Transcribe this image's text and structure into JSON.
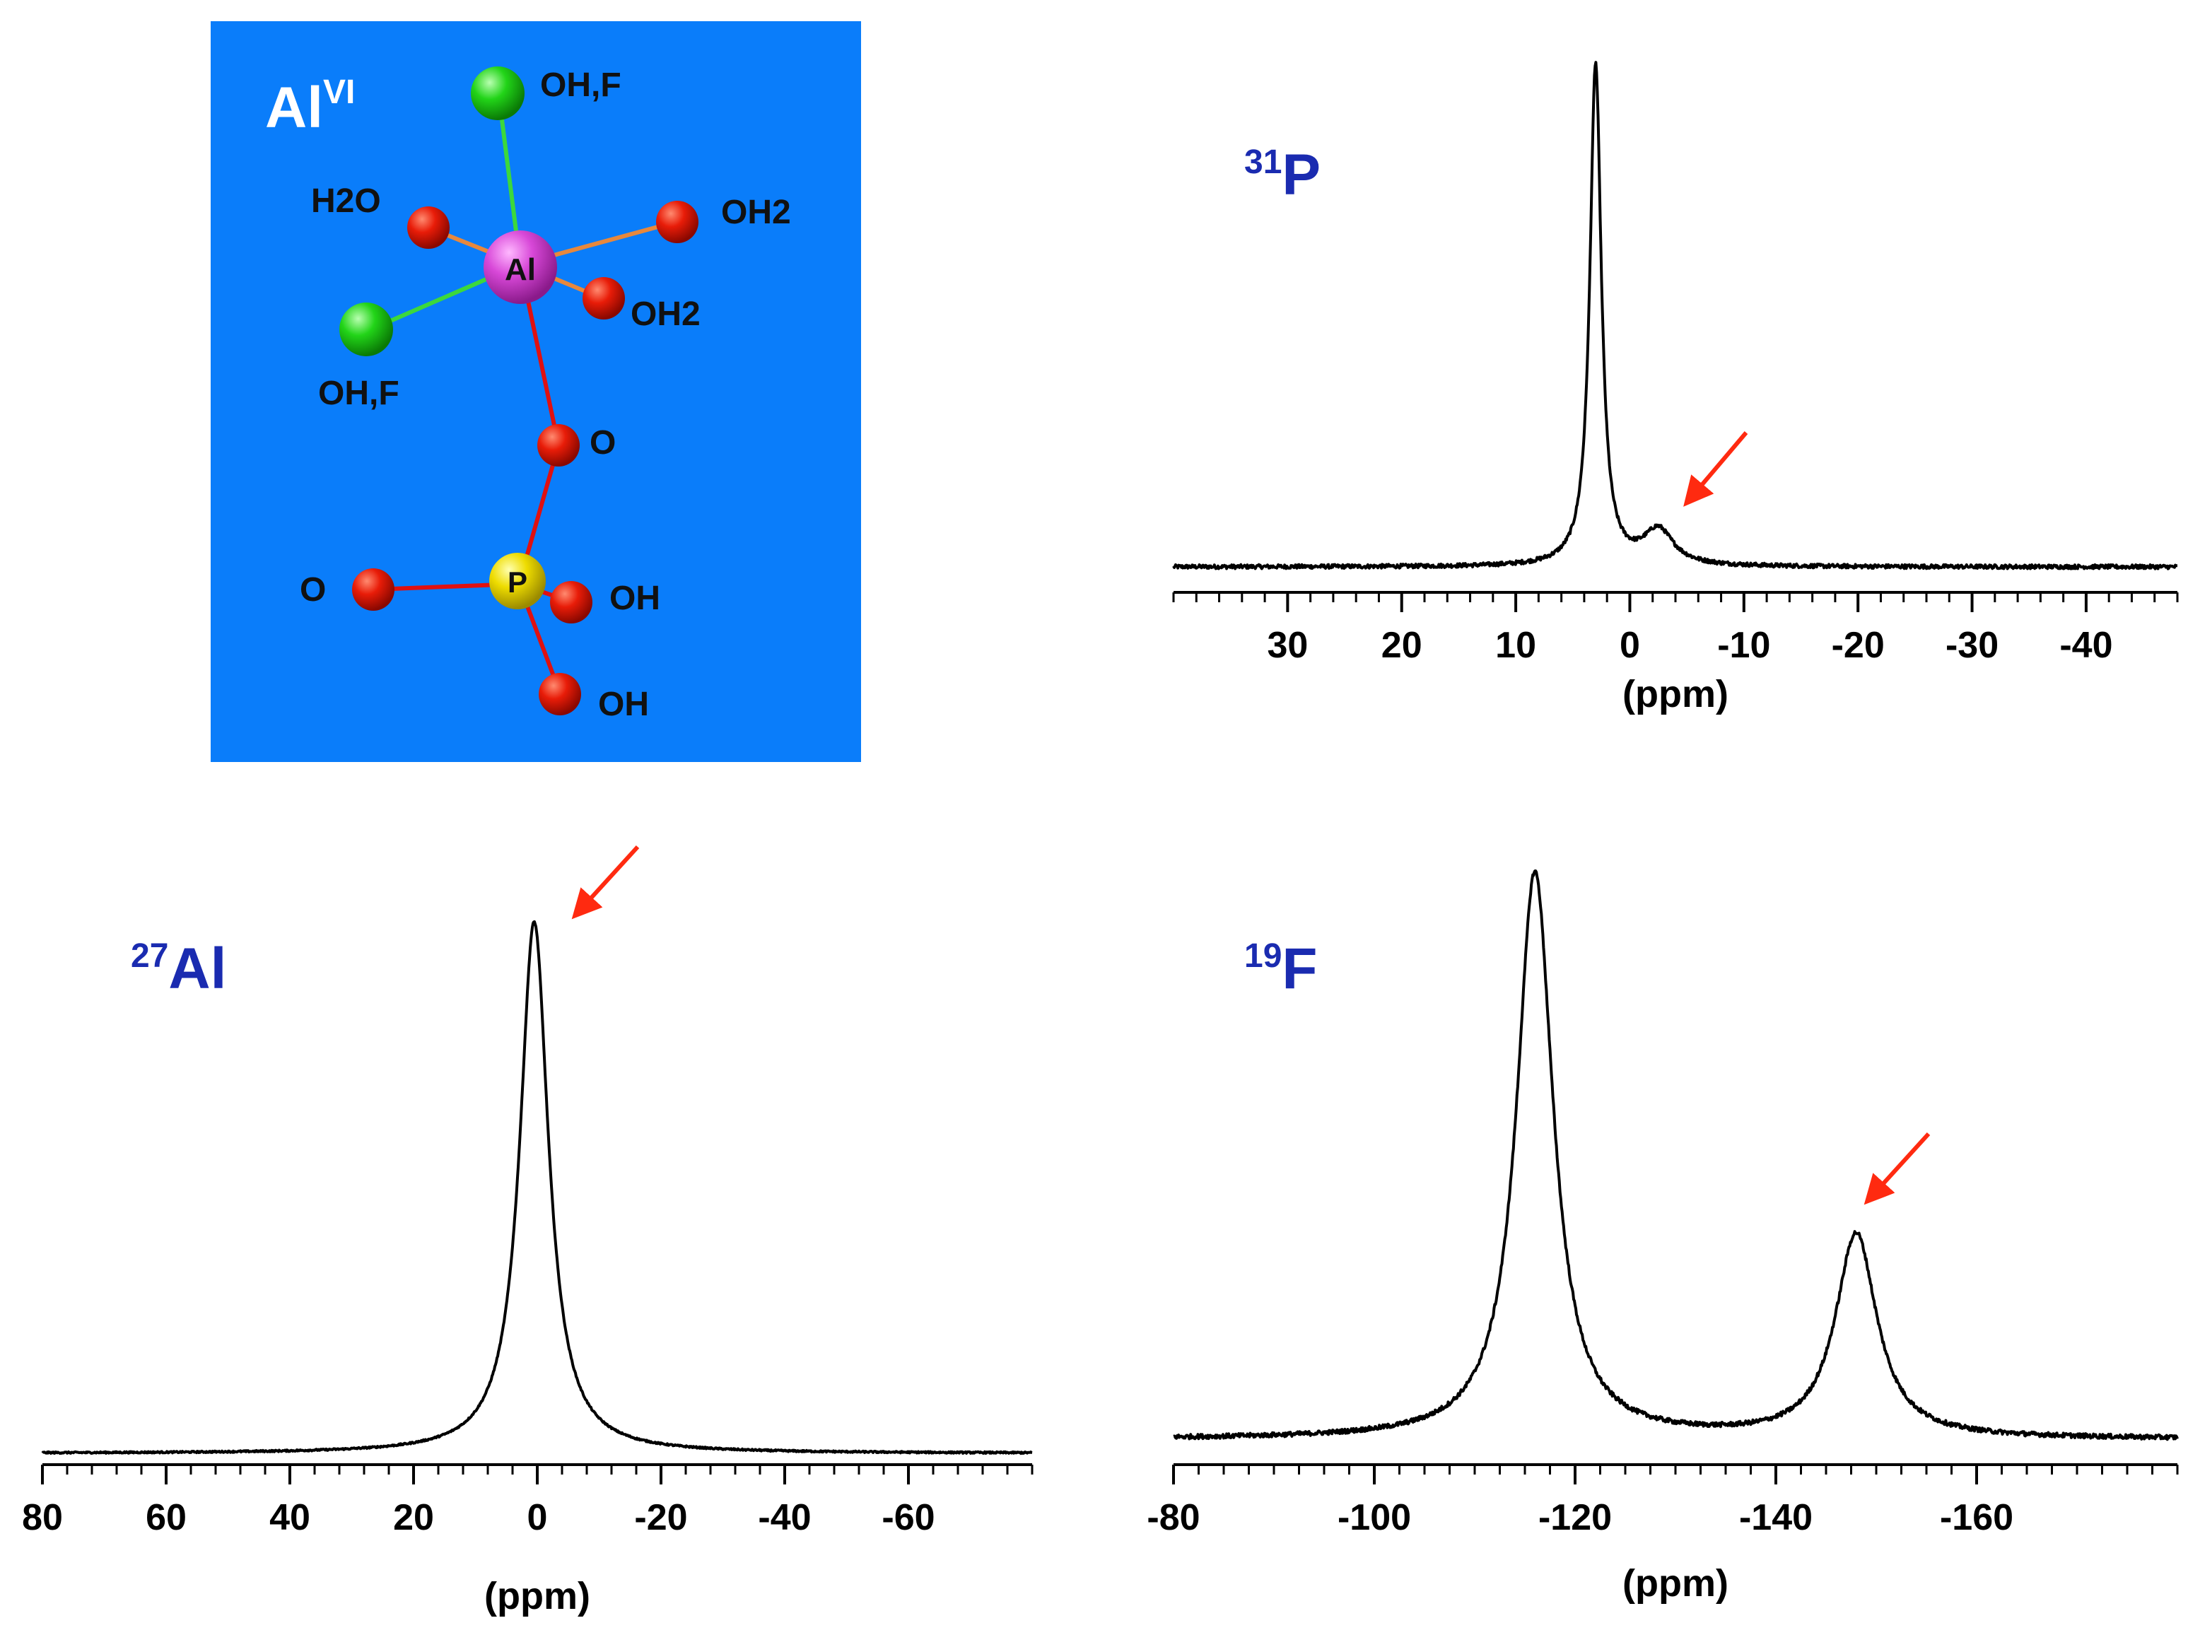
{
  "colors": {
    "panel_bg": "#0a7dfa",
    "nucleus_label": "#1a2bb0",
    "arrow": "#ff2a10",
    "spectrum": "#000000",
    "oxygen": "#e01808",
    "halogen": "#22d418",
    "aluminum": "#d848d8",
    "phosphorus": "#e6d400",
    "bond_green": "#3cd83c",
    "bond_orange": "#e8883c",
    "bond_red": "#e01010"
  },
  "molecule": {
    "title_main": "Al",
    "title_sup": "VI",
    "atoms": {
      "al": "Al",
      "p": "P"
    },
    "labels": {
      "oh_f_top": "OH,F",
      "h2o": "H2O",
      "oh2_right": "OH2",
      "oh2_lower": "OH2",
      "oh_f_left": "OH,F",
      "o_bridge": "O",
      "o_left": "O",
      "oh_right": "OH",
      "oh_bottom": "OH"
    }
  },
  "chart_data": [
    {
      "id": "p31",
      "type": "line",
      "title_sup": "31",
      "title_main": "P",
      "xlabel": "(ppm)",
      "xlim": [
        40,
        -48
      ],
      "ticks": [
        30,
        20,
        10,
        0,
        -10,
        -20,
        -30,
        -40
      ],
      "tick_labels": [
        "30",
        "20",
        "10",
        "0",
        "-10",
        "-20",
        "-30",
        "-40"
      ],
      "minor_step": 2,
      "series": [
        {
          "name": "31P spectrum",
          "baseline": 0,
          "peaks": [
            {
              "center": 3.0,
              "height": 100,
              "width": 0.6
            },
            {
              "center": -2.5,
              "height": 7,
              "width": 1.6
            }
          ],
          "noise": 0.8
        }
      ],
      "annotations": [
        {
          "type": "arrow",
          "points_to_ppm": -5,
          "label": ""
        }
      ]
    },
    {
      "id": "al27",
      "type": "line",
      "title_sup": "27",
      "title_main": "Al",
      "xlabel": "(ppm)",
      "xlim": [
        80,
        -80
      ],
      "ticks": [
        80,
        60,
        40,
        20,
        0,
        -20,
        -40,
        -60
      ],
      "tick_labels": [
        "80",
        "60",
        "40",
        "20",
        "0",
        "-20",
        "-40",
        "-60"
      ],
      "minor_step": 4,
      "series": [
        {
          "name": "27Al spectrum",
          "baseline": 0,
          "peaks": [
            {
              "center": 0.5,
              "height": 100,
              "width": 2.8
            }
          ],
          "noise": 0.3
        }
      ],
      "annotations": [
        {
          "type": "arrow",
          "points_to_ppm": -7,
          "label": ""
        }
      ]
    },
    {
      "id": "f19",
      "type": "line",
      "title_sup": "19",
      "title_main": "F",
      "xlabel": "(ppm)",
      "xlim": [
        -80,
        -180
      ],
      "ticks": [
        -80,
        -100,
        -120,
        -140,
        -160
      ],
      "tick_labels": [
        "-80",
        "-100",
        "-120",
        "-140",
        "-160"
      ],
      "minor_step": 2.5,
      "series": [
        {
          "name": "19F spectrum",
          "baseline": 0,
          "peaks": [
            {
              "center": -116,
              "height": 100,
              "width": 2.2
            },
            {
              "center": -148,
              "height": 36,
              "width": 2.5
            }
          ],
          "noise": 0.8
        }
      ],
      "annotations": [
        {
          "type": "arrow",
          "points_to_ppm": -150,
          "label": ""
        }
      ]
    }
  ]
}
